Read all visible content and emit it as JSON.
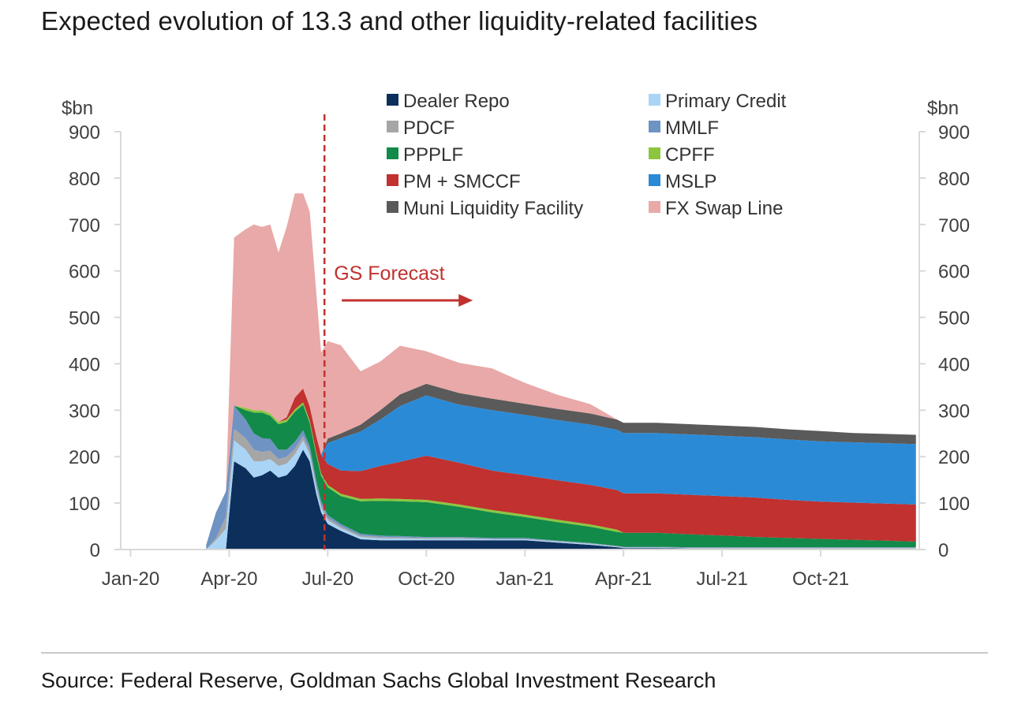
{
  "page": {
    "title": "Expected evolution of 13.3 and other liquidity-related facilities",
    "source": "Source: Federal Reserve, Goldman Sachs Global Investment Research"
  },
  "chart_data": {
    "type": "area",
    "stacked": true,
    "title": "Expected evolution of 13.3 and other liquidity-related facilities",
    "ylabel_left": "$bn",
    "ylabel_right": "$bn",
    "ylim": [
      0,
      900
    ],
    "yticks": [
      0,
      100,
      200,
      300,
      400,
      500,
      600,
      700,
      800,
      900
    ],
    "x_range_months": [
      -0.3,
      24
    ],
    "x_ticks": [
      {
        "label": "Jan-20",
        "month": 0
      },
      {
        "label": "Apr-20",
        "month": 3
      },
      {
        "label": "Jul-20",
        "month": 6
      },
      {
        "label": "Oct-20",
        "month": 9
      },
      {
        "label": "Jan-21",
        "month": 12
      },
      {
        "label": "Apr-21",
        "month": 15
      },
      {
        "label": "Jul-21",
        "month": 18
      },
      {
        "label": "Oct-21",
        "month": 21
      }
    ],
    "x": [
      2.3,
      2.6,
      2.9,
      3.15,
      3.5,
      3.75,
      4.0,
      4.25,
      4.5,
      4.75,
      5.0,
      5.25,
      5.45,
      5.65,
      5.8,
      6.0,
      6.4,
      7.0,
      7.6,
      8.2,
      9.0,
      10.0,
      11.0,
      12.0,
      13.0,
      14.0,
      14.8,
      15.0,
      16.0,
      17.0,
      18.0,
      19.0,
      20.0,
      21.0,
      22.0,
      23.0,
      23.9
    ],
    "series": [
      {
        "name": "Dealer Repo",
        "color": "#0c2f5c",
        "values": [
          0,
          0,
          0,
          190,
          175,
          155,
          160,
          170,
          155,
          160,
          180,
          215,
          190,
          120,
          80,
          55,
          40,
          22,
          20,
          20,
          20,
          20,
          20,
          20,
          15,
          10,
          5,
          3,
          3,
          2,
          2,
          2,
          2,
          2,
          2,
          2,
          2
        ]
      },
      {
        "name": "Primary Credit",
        "color": "#a9d4f5",
        "values": [
          0,
          20,
          45,
          45,
          40,
          35,
          30,
          25,
          25,
          25,
          25,
          20,
          15,
          12,
          10,
          8,
          6,
          5,
          4,
          4,
          3,
          3,
          2,
          2,
          2,
          2,
          1,
          1,
          1,
          1,
          1,
          1,
          1,
          1,
          1,
          1,
          1
        ]
      },
      {
        "name": "PDCF",
        "color": "#a6a6a6",
        "values": [
          0,
          5,
          25,
          25,
          25,
          25,
          20,
          18,
          15,
          15,
          12,
          10,
          8,
          7,
          6,
          5,
          4,
          3,
          3,
          2,
          2,
          2,
          1,
          1,
          1,
          1,
          1,
          1,
          1,
          1,
          1,
          1,
          1,
          1,
          1,
          1,
          1
        ]
      },
      {
        "name": "MMLF",
        "color": "#6f93c3",
        "values": [
          10,
          55,
          55,
          50,
          40,
          35,
          30,
          25,
          20,
          15,
          15,
          12,
          10,
          10,
          8,
          6,
          5,
          4,
          3,
          3,
          2,
          2,
          2,
          2,
          1,
          1,
          1,
          1,
          1,
          1,
          1,
          1,
          1,
          1,
          1,
          1,
          1
        ]
      },
      {
        "name": "PPPLF",
        "color": "#128a4a",
        "values": [
          0,
          0,
          0,
          0,
          20,
          45,
          55,
          50,
          55,
          60,
          65,
          55,
          50,
          55,
          55,
          60,
          60,
          70,
          75,
          75,
          75,
          65,
          55,
          45,
          40,
          35,
          30,
          30,
          30,
          28,
          25,
          22,
          20,
          18,
          16,
          14,
          12
        ]
      },
      {
        "name": "CPFF",
        "color": "#8cc63f",
        "values": [
          0,
          0,
          0,
          0,
          5,
          5,
          5,
          5,
          5,
          5,
          5,
          5,
          5,
          5,
          5,
          5,
          5,
          5,
          5,
          5,
          5,
          5,
          5,
          5,
          5,
          5,
          5,
          0,
          0,
          0,
          0,
          0,
          0,
          0,
          0,
          0,
          0
        ]
      },
      {
        "name": "PM + SMCCF",
        "color": "#c0312f",
        "values": [
          0,
          0,
          0,
          0,
          0,
          0,
          0,
          0,
          0,
          5,
          25,
          30,
          30,
          35,
          40,
          45,
          50,
          60,
          70,
          80,
          95,
          90,
          85,
          85,
          85,
          85,
          85,
          85,
          85,
          85,
          85,
          85,
          82,
          80,
          80,
          80,
          80
        ]
      },
      {
        "name": "MSLP",
        "color": "#2b8ad6",
        "values": [
          0,
          0,
          0,
          0,
          0,
          0,
          0,
          0,
          0,
          0,
          0,
          0,
          0,
          0,
          0,
          45,
          70,
          85,
          100,
          120,
          130,
          125,
          130,
          130,
          130,
          130,
          130,
          130,
          130,
          130,
          130,
          130,
          130,
          130,
          130,
          130,
          130
        ]
      },
      {
        "name": "Muni Liquidity Facility",
        "color": "#5a5a5a",
        "values": [
          0,
          0,
          0,
          0,
          0,
          0,
          0,
          0,
          0,
          0,
          0,
          0,
          0,
          0,
          0,
          10,
          10,
          15,
          20,
          25,
          25,
          25,
          25,
          24,
          24,
          24,
          22,
          22,
          22,
          22,
          22,
          22,
          22,
          22,
          20,
          20,
          20
        ]
      },
      {
        "name": "FX Swap Line",
        "color": "#e8a9a8",
        "values": [
          0,
          0,
          0,
          362,
          385,
          400,
          395,
          407,
          365,
          410,
          440,
          420,
          420,
          310,
          220,
          210,
          190,
          115,
          105,
          105,
          70,
          65,
          65,
          45,
          30,
          20,
          0,
          0,
          0,
          0,
          0,
          0,
          0,
          0,
          0,
          0,
          0
        ]
      }
    ],
    "annotations": [
      {
        "text": "GS Forecast",
        "color": "#c0312f",
        "forecast_start_month": 5.9
      }
    ],
    "legend": {
      "placement": "top",
      "columns": 2
    }
  }
}
